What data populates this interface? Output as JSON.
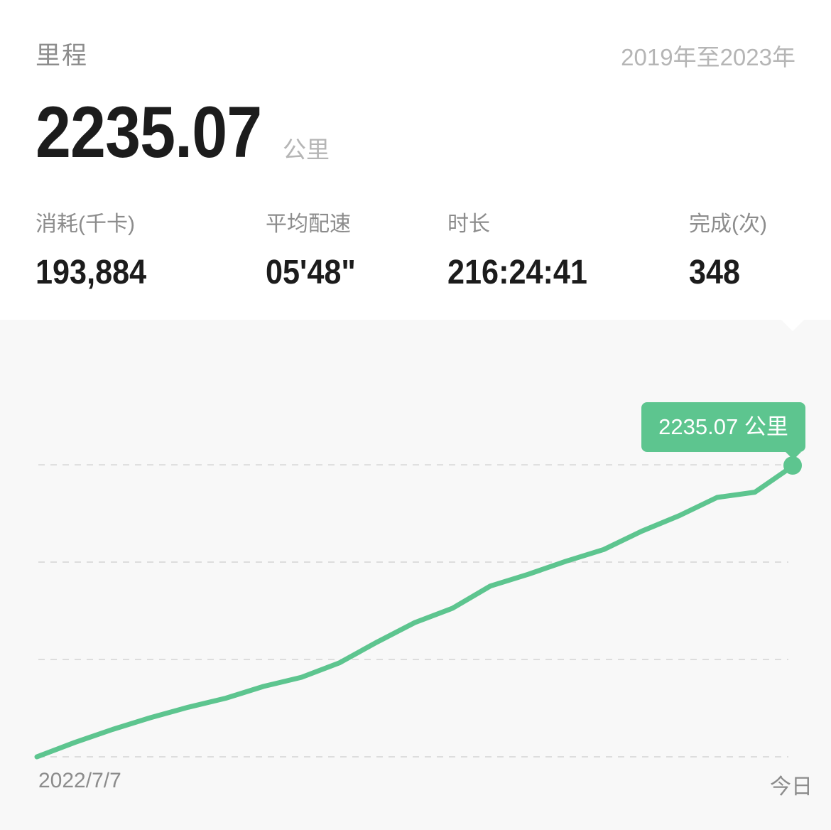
{
  "header": {
    "title": "里程",
    "date_range": "2019年至2023年"
  },
  "summary": {
    "distance_value": "2235.07",
    "distance_unit": "公里"
  },
  "stats": [
    {
      "label": "消耗(千卡)",
      "value": "193,884"
    },
    {
      "label": "平均配速",
      "value": "05'48\""
    },
    {
      "label": "时长",
      "value": "216:24:41"
    },
    {
      "label": "完成(次)",
      "value": "348"
    }
  ],
  "colors": {
    "accent": "#5dc58f",
    "grid": "#dddddd",
    "text_dark": "#1c1c1c",
    "text_muted": "#8c8c8c"
  },
  "chart_data": {
    "type": "line",
    "title": "",
    "x_labels": {
      "start": "2022/7/7",
      "end": "今日"
    },
    "ylabel": "",
    "ylim": [
      0,
      2400
    ],
    "series": [
      {
        "name": "",
        "x": [
          0,
          0.05,
          0.1,
          0.15,
          0.2,
          0.25,
          0.3,
          0.35,
          0.4,
          0.45,
          0.5,
          0.55,
          0.6,
          0.65,
          0.7,
          0.75,
          0.8,
          0.85,
          0.9,
          0.95,
          0.99,
          1.0
        ],
        "y": [
          0,
          110,
          210,
          300,
          380,
          450,
          540,
          610,
          720,
          880,
          1030,
          1140,
          1310,
          1400,
          1500,
          1590,
          1730,
          1850,
          1990,
          2030,
          2190,
          2235.07
        ]
      }
    ],
    "tooltip": "2235.07 公里",
    "grid": true
  }
}
